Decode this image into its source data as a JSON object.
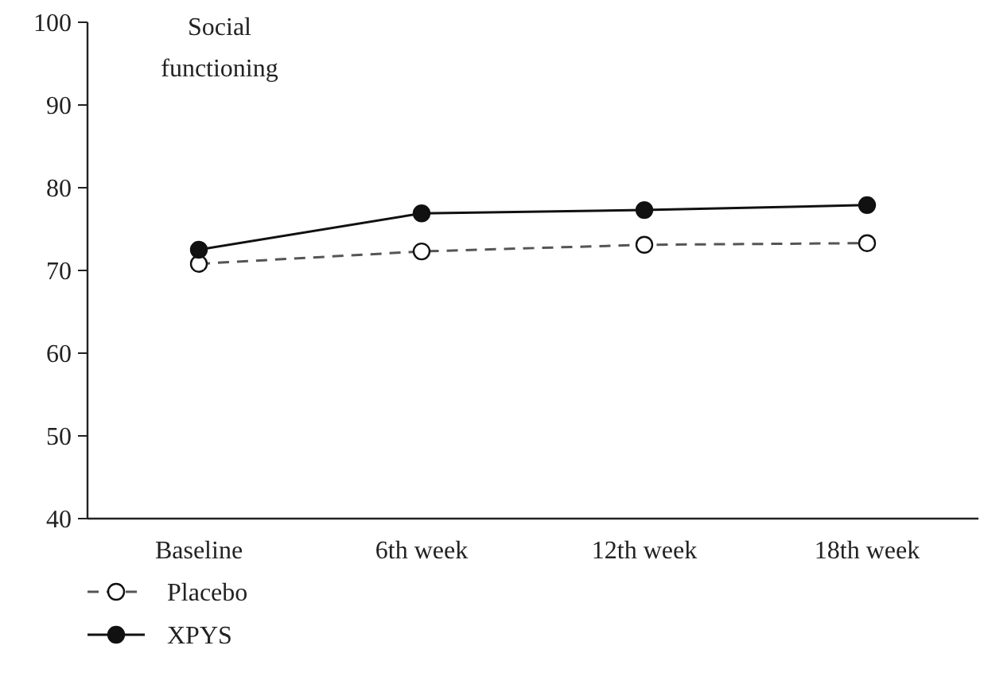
{
  "chart_data": {
    "type": "line",
    "title": "Social functioning",
    "categories": [
      "Baseline",
      "6th week",
      "12th week",
      "18th week"
    ],
    "series": [
      {
        "name": "Placebo",
        "color": "#555555",
        "line_style": "dashed",
        "values": [
          70.8,
          72.3,
          73.1,
          73.3
        ]
      },
      {
        "name": "XPYS",
        "color": "#111111",
        "line_style": "solid",
        "values": [
          72.5,
          76.9,
          77.3,
          77.9
        ]
      }
    ],
    "ylim": [
      40,
      100
    ],
    "yticks": [
      40,
      50,
      60,
      70,
      80,
      90,
      100
    ],
    "marker": "circle",
    "legend": "bottom left",
    "grid": false
  }
}
